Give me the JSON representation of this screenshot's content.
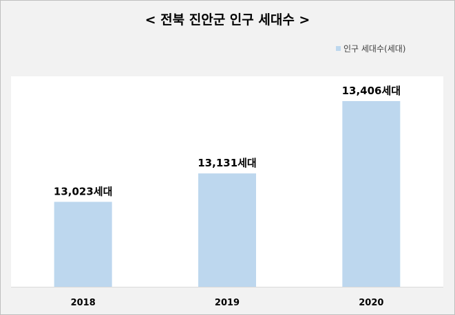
{
  "chart_data": {
    "type": "bar",
    "title": "< 전북 진안군 인구 세대수 >",
    "categories": [
      "2018",
      "2019",
      "2020"
    ],
    "series": [
      {
        "name": "인구 세대수(세대)",
        "values": [
          13023,
          13131,
          13406
        ],
        "data_labels": [
          "13,023세대",
          "13,131세대",
          "13,406세대"
        ]
      }
    ],
    "xlabel": "",
    "ylabel": "",
    "ylim": [
      12700,
      13500
    ],
    "grid": false,
    "legend": "top-right",
    "colors": {
      "bar": "#bdd7ee",
      "background": "#f2f2f2",
      "plot_background": "#ffffff"
    }
  }
}
